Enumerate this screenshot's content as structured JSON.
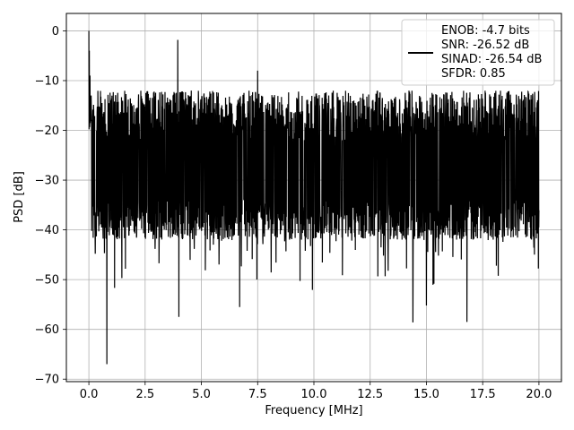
{
  "chart_data": {
    "type": "line",
    "xlabel": "Frequency [MHz]",
    "ylabel": "PSD [dB]",
    "xlim": [
      -1.0,
      21.0
    ],
    "ylim": [
      -70.5,
      3.5
    ],
    "grid": true,
    "x_ticks": [
      0.0,
      2.5,
      5.0,
      7.5,
      10.0,
      12.5,
      15.0,
      17.5,
      20.0
    ],
    "x_tick_labels": [
      "0.0",
      "2.5",
      "5.0",
      "7.5",
      "10.0",
      "12.5",
      "15.0",
      "17.5",
      "20.0"
    ],
    "y_ticks": [
      0,
      -10,
      -20,
      -30,
      -40,
      -50,
      -60,
      -70
    ],
    "y_tick_labels": [
      "0",
      "−10",
      "−20",
      "−30",
      "−40",
      "−50",
      "−60",
      "−70"
    ],
    "legend": {
      "location": "upper right",
      "lines": [
        "ENOB: -4.7 bits",
        "SNR: -26.52 dB",
        "SINAD: -26.54 dB",
        "SFDR: 0.85"
      ]
    },
    "series": [
      {
        "color": "#000000",
        "x_start": 0.0,
        "x_end": 20.0,
        "noise_floor_center": -25,
        "upper_envelope": -12,
        "lower_envelope": -38,
        "spikes": [
          {
            "x": 0.0,
            "y": 0.0
          },
          {
            "x": 0.02,
            "y": -4
          },
          {
            "x": 0.05,
            "y": -9
          },
          {
            "x": 0.1,
            "y": -13
          },
          {
            "x": 3.95,
            "y": -1.8
          },
          {
            "x": 7.5,
            "y": -8
          },
          {
            "x": 4.0,
            "y": -57.5
          },
          {
            "x": 0.8,
            "y": -67
          },
          {
            "x": 6.7,
            "y": -55.5
          },
          {
            "x": 14.4,
            "y": -58.6
          },
          {
            "x": 16.8,
            "y": -58.5
          },
          {
            "x": 15.0,
            "y": -55.2
          }
        ]
      }
    ]
  }
}
